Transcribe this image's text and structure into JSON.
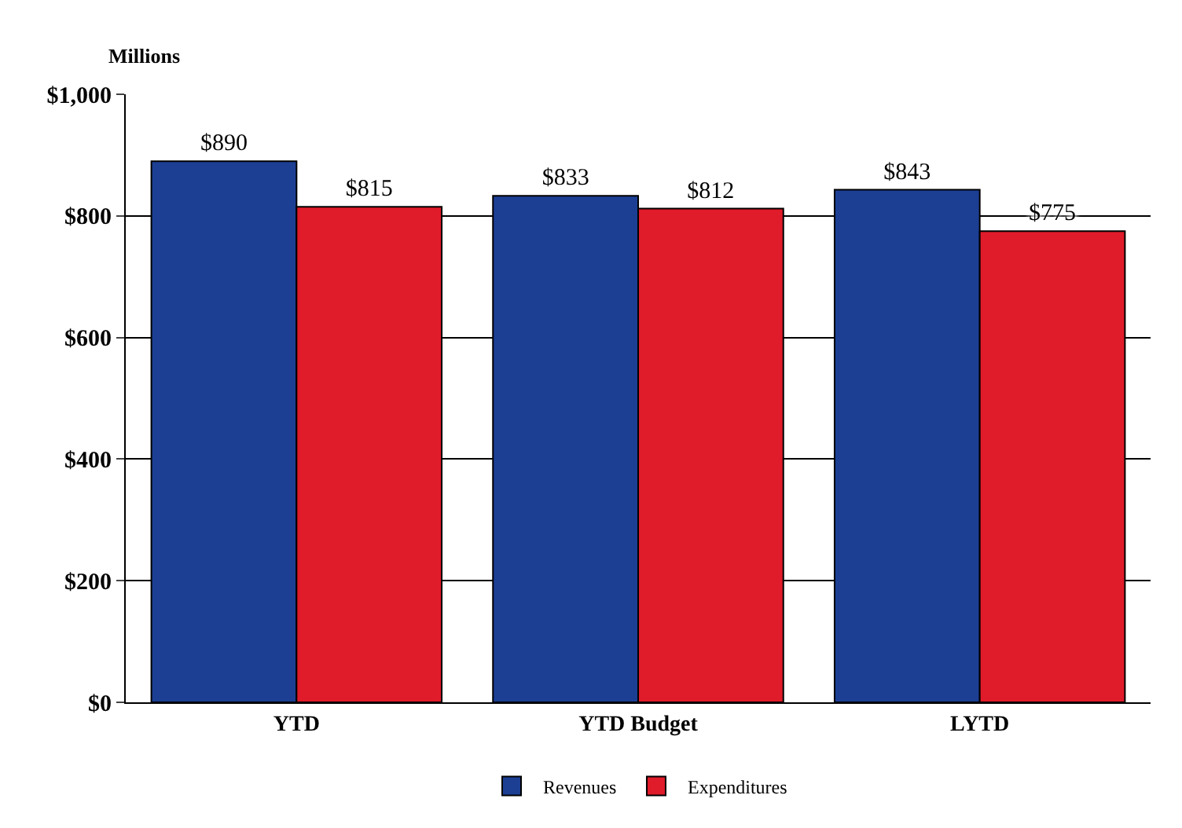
{
  "chart_data": {
    "type": "bar",
    "ylabel": "Millions",
    "categories": [
      "YTD",
      "YTD Budget",
      "LYTD"
    ],
    "series": [
      {
        "name": "Revenues",
        "color": "#1c3f94",
        "values": [
          890,
          833,
          843
        ],
        "value_labels": [
          "$890",
          "$833",
          "$843"
        ]
      },
      {
        "name": "Expenditures",
        "color": "#e01b2a",
        "values": [
          815,
          812,
          775
        ],
        "value_labels": [
          "$815",
          "$812",
          "$775"
        ]
      }
    ],
    "ylim": [
      0,
      1000
    ],
    "yticks": [
      {
        "value": 0,
        "label": "$0"
      },
      {
        "value": 200,
        "label": "$200"
      },
      {
        "value": 400,
        "label": "$400"
      },
      {
        "value": 600,
        "label": "$600"
      },
      {
        "value": 800,
        "label": "$800"
      },
      {
        "value": 1000,
        "label": "$1,000"
      }
    ],
    "grid": "y",
    "legend": "bottom"
  }
}
